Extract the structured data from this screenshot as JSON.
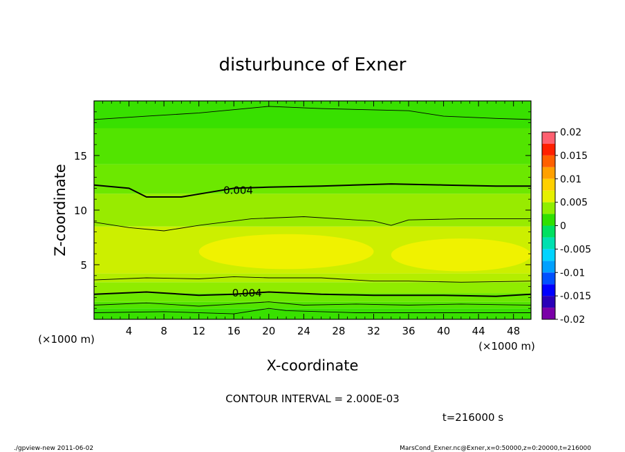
{
  "chart_data": {
    "type": "heatmap",
    "title": "disturbunce of Exner",
    "xlabel": "X-coordinate",
    "ylabel": "Z-coordinate",
    "x_unit_left": "(×1000 m)",
    "x_unit_right": "(×1000 m)",
    "xlim": [
      0,
      50
    ],
    "ylim": [
      0,
      20
    ],
    "x_ticks": [
      4,
      8,
      12,
      16,
      20,
      24,
      28,
      32,
      36,
      40,
      44,
      48
    ],
    "y_ticks": [
      5,
      10,
      15
    ],
    "colorbar": {
      "levels": [
        -0.02,
        -0.0175,
        -0.015,
        -0.0125,
        -0.01,
        -0.0075,
        -0.005,
        -0.0025,
        0,
        0.0025,
        0.005,
        0.0075,
        0.01,
        0.0125,
        0.015,
        0.0175,
        0.02
      ],
      "colors": [
        "#7a00a8",
        "#2a00b8",
        "#0000ff",
        "#0050ff",
        "#00a0ff",
        "#00d4ff",
        "#00e0b0",
        "#00e060",
        "#30e000",
        "#90ee00",
        "#e6f000",
        "#ffd000",
        "#ffa000",
        "#ff6000",
        "#ff2000",
        "#ff6070"
      ],
      "tick_labels": [
        "0.02",
        "0.015",
        "0.01",
        "0.005",
        "0",
        "-0.005",
        "-0.01",
        "-0.015",
        "-0.02"
      ],
      "tick_values": [
        0.02,
        0.015,
        0.01,
        0.005,
        0,
        -0.005,
        -0.01,
        -0.015,
        -0.02
      ]
    },
    "field_bands": [
      {
        "z": [
          0,
          1.0
        ],
        "value": 0.0015,
        "color": "#38e000"
      },
      {
        "z": [
          1.0,
          1.6
        ],
        "value": 0.0025,
        "color": "#52e400"
      },
      {
        "z": [
          1.6,
          2.4
        ],
        "value": 0.0035,
        "color": "#6ce800"
      },
      {
        "z": [
          2.4,
          3.4
        ],
        "value": 0.0045,
        "color": "#90ec00"
      },
      {
        "z": [
          3.4,
          4.2
        ],
        "value": 0.0055,
        "color": "#b4ee00"
      },
      {
        "z": [
          4.2,
          8.5
        ],
        "value": 0.006,
        "color": "#ccef00"
      },
      {
        "z": [
          8.5,
          11.5
        ],
        "value": 0.0045,
        "color": "#98eb00"
      },
      {
        "z": [
          11.5,
          14.2
        ],
        "value": 0.0035,
        "color": "#6ce800"
      },
      {
        "z": [
          14.2,
          17.5
        ],
        "value": 0.0025,
        "color": "#52e400"
      },
      {
        "z": [
          17.5,
          20
        ],
        "value": 0.0015,
        "color": "#38e000"
      }
    ],
    "maximum_patches": [
      {
        "x": [
          12,
          32
        ],
        "z": [
          4.6,
          7.8
        ],
        "value": 0.0065,
        "color": "#f0f200"
      },
      {
        "x": [
          34,
          50
        ],
        "z": [
          4.4,
          7.4
        ],
        "value": 0.0065,
        "color": "#f0f200"
      }
    ],
    "contour_lines": [
      {
        "level": 0.004,
        "label": "0.004",
        "bold": true,
        "points": [
          [
            0,
            12.3
          ],
          [
            4,
            12.0
          ],
          [
            6,
            11.2
          ],
          [
            10,
            11.2
          ],
          [
            13,
            11.6
          ],
          [
            16,
            12.0
          ],
          [
            20,
            12.1
          ],
          [
            26,
            12.2
          ],
          [
            34,
            12.4
          ],
          [
            40,
            12.3
          ],
          [
            46,
            12.2
          ],
          [
            50,
            12.2
          ]
        ],
        "label_at": [
          16.5,
          11.8
        ]
      },
      {
        "level": 0.004,
        "label": "0.004",
        "bold": true,
        "points": [
          [
            0,
            2.3
          ],
          [
            6,
            2.5
          ],
          [
            12,
            2.2
          ],
          [
            16,
            2.3
          ],
          [
            20,
            2.5
          ],
          [
            26,
            2.3
          ],
          [
            32,
            2.2
          ],
          [
            40,
            2.2
          ],
          [
            46,
            2.1
          ],
          [
            50,
            2.3
          ]
        ],
        "label_at": [
          17.5,
          2.4
        ]
      },
      {
        "level": 0.002,
        "bold": false,
        "points": [
          [
            0,
            18.3
          ],
          [
            6,
            18.6
          ],
          [
            12,
            18.9
          ],
          [
            20,
            19.5
          ],
          [
            26,
            19.3
          ],
          [
            36,
            19.1
          ],
          [
            40,
            18.6
          ],
          [
            46,
            18.4
          ],
          [
            50,
            18.3
          ]
        ]
      },
      {
        "level": 0.006,
        "bold": false,
        "points": [
          [
            0,
            8.9
          ],
          [
            4,
            8.4
          ],
          [
            8,
            8.1
          ],
          [
            12,
            8.6
          ],
          [
            18,
            9.2
          ],
          [
            24,
            9.4
          ],
          [
            32,
            9.0
          ],
          [
            34,
            8.6
          ],
          [
            36,
            9.1
          ],
          [
            42,
            9.2
          ],
          [
            50,
            9.2
          ]
        ]
      },
      {
        "level": 0.006,
        "bold": false,
        "points": [
          [
            0,
            3.6
          ],
          [
            6,
            3.8
          ],
          [
            12,
            3.7
          ],
          [
            16,
            3.9
          ],
          [
            20,
            3.8
          ],
          [
            26,
            3.8
          ],
          [
            32,
            3.5
          ],
          [
            36,
            3.5
          ],
          [
            42,
            3.4
          ],
          [
            50,
            3.5
          ]
        ]
      },
      {
        "level": 0.002,
        "bold": false,
        "points": [
          [
            0,
            1.3
          ],
          [
            6,
            1.5
          ],
          [
            12,
            1.2
          ],
          [
            16,
            1.4
          ],
          [
            20,
            1.6
          ],
          [
            24,
            1.3
          ],
          [
            30,
            1.4
          ],
          [
            36,
            1.3
          ],
          [
            42,
            1.4
          ],
          [
            50,
            1.3
          ]
        ]
      },
      {
        "level": 0.0,
        "bold": false,
        "points": [
          [
            0,
            0.6
          ],
          [
            8,
            0.7
          ],
          [
            16,
            0.5
          ],
          [
            20,
            1.0
          ],
          [
            22,
            0.8
          ],
          [
            30,
            0.6
          ],
          [
            40,
            0.6
          ],
          [
            50,
            0.6
          ]
        ]
      }
    ],
    "annotations": {
      "contour_interval": "CONTOUR INTERVAL = 2.000E-03",
      "time": "t=216000 s",
      "footer_left": "./gpview-new  2011-06-02",
      "footer_right": "MarsCond_Exner.nc@Exner,x=0:50000,z=0:20000,t=216000"
    }
  }
}
